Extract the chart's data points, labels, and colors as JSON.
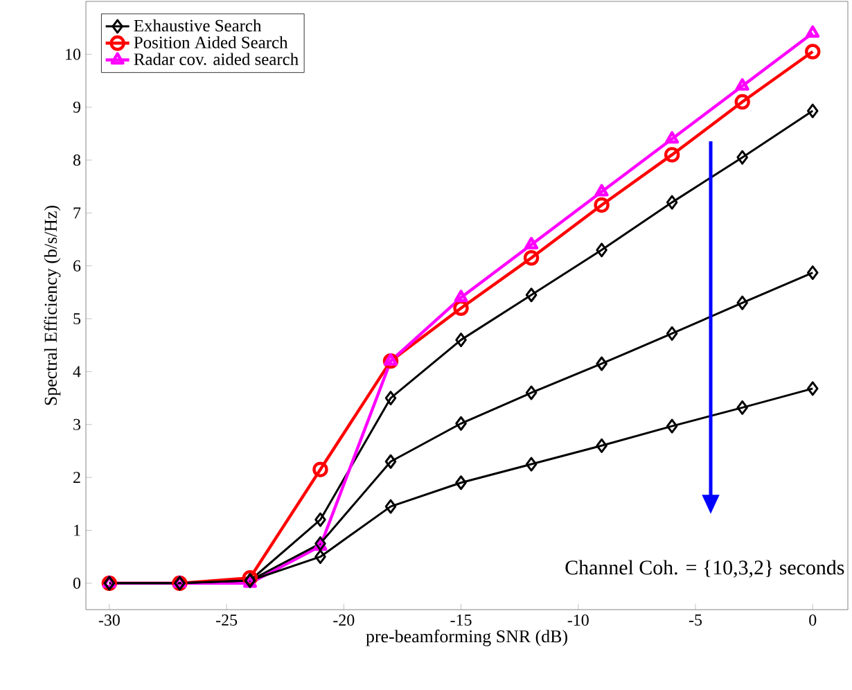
{
  "chart_data": {
    "type": "line",
    "xlabel": "pre-beamforming SNR (dB)",
    "ylabel": "Spectral Efficiency (b/s/Hz)",
    "x": [
      -30,
      -27,
      -24,
      -21,
      -18,
      -15,
      -12,
      -9,
      -6,
      -3,
      0
    ],
    "series": [
      {
        "name": "Exhaustive Search",
        "color": "#000000",
        "marker": "diamond",
        "values": [
          0,
          0,
          0.05,
          1.2,
          3.5,
          4.6,
          5.45,
          6.3,
          7.2,
          8.05,
          8.93
        ]
      },
      {
        "name": "Position Aided Search",
        "color": "#ff0000",
        "marker": "circle",
        "values": [
          0,
          0,
          0.1,
          2.15,
          4.2,
          5.2,
          6.15,
          7.15,
          8.1,
          9.1,
          10.05
        ]
      },
      {
        "name": "Radar cov. aided search",
        "color": "#ff00ff",
        "marker": "triangle",
        "values": [
          0,
          0,
          0,
          0.7,
          4.2,
          5.4,
          6.4,
          7.4,
          8.4,
          9.4,
          10.4
        ]
      },
      {
        "color": "#000000",
        "marker": "diamond",
        "values": [
          0,
          0,
          0.05,
          0.75,
          2.3,
          3.02,
          3.6,
          4.15,
          4.72,
          5.3,
          5.87
        ]
      },
      {
        "color": "#000000",
        "marker": "diamond",
        "values": [
          0,
          0,
          0.05,
          0.5,
          1.45,
          1.9,
          2.25,
          2.6,
          2.97,
          3.32,
          3.68
        ]
      }
    ],
    "xlim": [
      -31,
      1.5
    ],
    "ylim": [
      -0.5,
      11
    ],
    "xticks": [
      -30,
      -25,
      -20,
      -15,
      -10,
      -5,
      0
    ],
    "yticks": [
      0,
      1,
      2,
      3,
      4,
      5,
      6,
      7,
      8,
      9,
      10
    ],
    "grid": false,
    "legend": "top left",
    "line_style": "solid",
    "annotations": [
      "Channel Coh. = {10,3,2} seconds"
    ]
  }
}
